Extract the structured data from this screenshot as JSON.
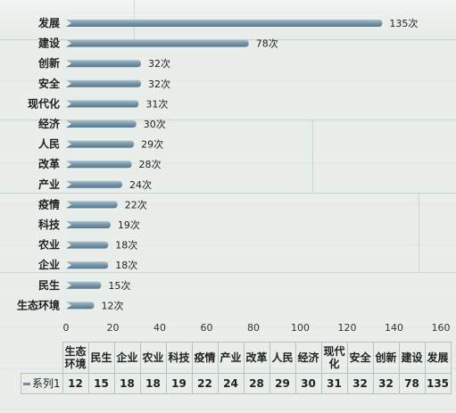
{
  "chart_data": {
    "type": "bar",
    "orientation": "horizontal",
    "categories": [
      "发展",
      "建设",
      "创新",
      "安全",
      "现代化",
      "经济",
      "人民",
      "改革",
      "产业",
      "疫情",
      "科技",
      "农业",
      "企业",
      "民生",
      "生态环境"
    ],
    "value_labels": [
      "135次",
      "78次",
      "32次",
      "32次",
      "31次",
      "30次",
      "29次",
      "28次",
      "24次",
      "22次",
      "19次",
      "18次",
      "18次",
      "15次",
      "12次"
    ],
    "series": [
      {
        "name": "系列1",
        "values": [
          135,
          78,
          32,
          32,
          31,
          30,
          29,
          28,
          24,
          22,
          19,
          18,
          18,
          15,
          12
        ]
      }
    ],
    "xlim": [
      0,
      160
    ],
    "x_ticks": [
      "0",
      "20",
      "40",
      "60",
      "80",
      "100",
      "120",
      "140",
      "160"
    ],
    "legend_placement": "data-table",
    "bar_color": "#6e8fa3",
    "table": {
      "categories": [
        "生态\n环境",
        "民生",
        "企业",
        "农业",
        "科技",
        "疫情",
        "产业",
        "改革",
        "人民",
        "经济",
        "现代\n化",
        "安全",
        "创新",
        "建设",
        "发展"
      ],
      "values": [
        "12",
        "15",
        "18",
        "18",
        "19",
        "22",
        "24",
        "28",
        "29",
        "30",
        "31",
        "32",
        "32",
        "78",
        "135"
      ]
    }
  }
}
